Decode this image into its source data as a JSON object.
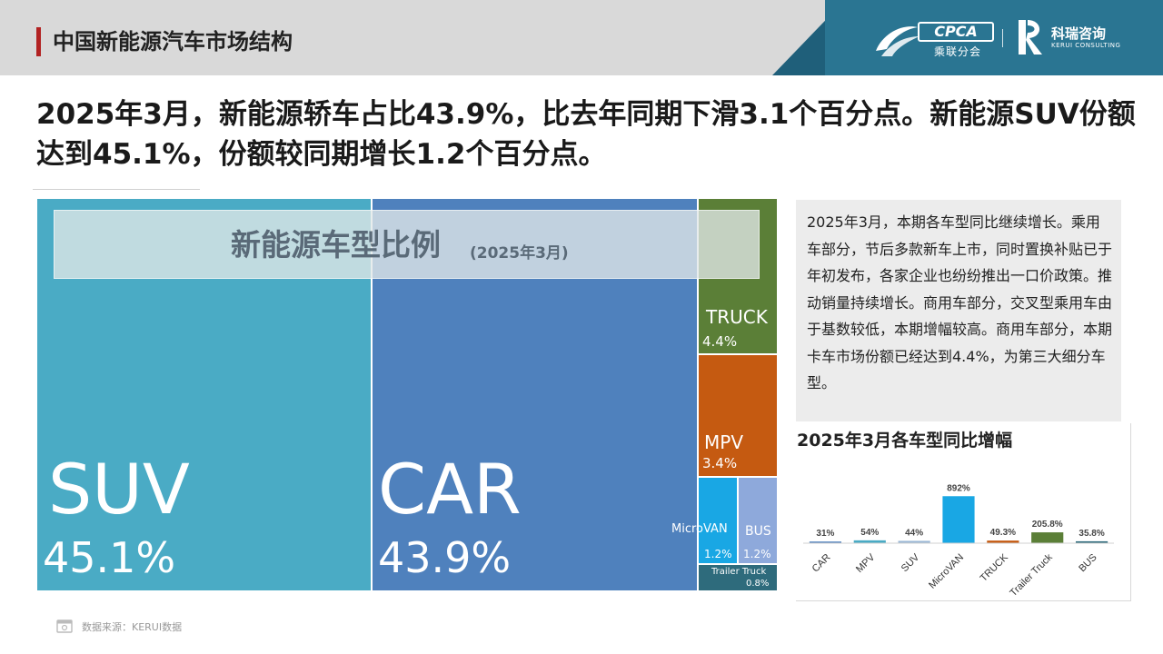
{
  "header": {
    "title": "中国新能源汽车市场结构",
    "logo_cpca_text": "CPCA",
    "logo_cpca_sub": "乘联分会",
    "logo_keruii_cn": "科瑞咨询",
    "logo_keruii_en": "KERUI CONSULTING"
  },
  "headline": "2025年3月，新能源轿车占比43.9%，比去年同期下滑3.1个百分点。新能源SUV份额达到45.1%，份额较同期增长1.2个百分点。",
  "treemap": {
    "title": "新能源车型比例",
    "subtitle": "(2025年3月)",
    "cells": [
      {
        "name": "SUV",
        "value": "45.1%",
        "color": "#4aabc5"
      },
      {
        "name": "CAR",
        "value": "43.9%",
        "color": "#4f81bd"
      },
      {
        "name": "TRUCK",
        "value": "4.4%",
        "color": "#5b7f37"
      },
      {
        "name": "MPV",
        "value": "3.4%",
        "color": "#c55a11"
      },
      {
        "name": "MicroVAN",
        "value": "1.2%",
        "color": "#19a7e4"
      },
      {
        "name": "BUS",
        "value": "1.2%",
        "color": "#8ea9db"
      },
      {
        "name": "Trailer Truck",
        "value": "0.8%",
        "color": "#2e6b7c"
      }
    ]
  },
  "commentary": "2025年3月，本期各车型同比继续增长。乘用车部分，节后多款新车上市，同时置换补贴已于年初发布，各家企业也纷纷推出一口价政策。推动销量持续增长。商用车部分，交叉型乘用车由于基数较低，本期增幅较高。商用车部分，本期卡车市场份额已经达到4.4%，为第三大细分车型。",
  "chart_data": [
    {
      "type": "treemap",
      "title": "新能源车型比例",
      "subtitle": "(2025年3月)",
      "categories": [
        "SUV",
        "CAR",
        "TRUCK",
        "MPV",
        "MicroVAN",
        "BUS",
        "Trailer Truck"
      ],
      "values": [
        45.1,
        43.9,
        4.4,
        3.4,
        1.2,
        1.2,
        0.8
      ],
      "unit": "%"
    },
    {
      "type": "bar",
      "title": "2025年3月各车型同比增幅",
      "categories": [
        "CAR",
        "MPV",
        "SUV",
        "MicroVAN",
        "TRUCK",
        "Trailer Truck",
        "BUS"
      ],
      "values": [
        31,
        54,
        44,
        892,
        49.3,
        205.8,
        35.8
      ],
      "labels": [
        "31%",
        "54%",
        "44%",
        "892%",
        "49.3%",
        "205.8%",
        "35.8%"
      ],
      "colors": [
        "#4f81bd",
        "#4aabc5",
        "#9bb7d5",
        "#19a7e4",
        "#c55a11",
        "#5b7f37",
        "#2e6b7c"
      ],
      "ylim": [
        0,
        1000
      ],
      "grid": false,
      "legend": "none"
    }
  ],
  "footer": {
    "source": "数据来源：KERUI数据"
  }
}
